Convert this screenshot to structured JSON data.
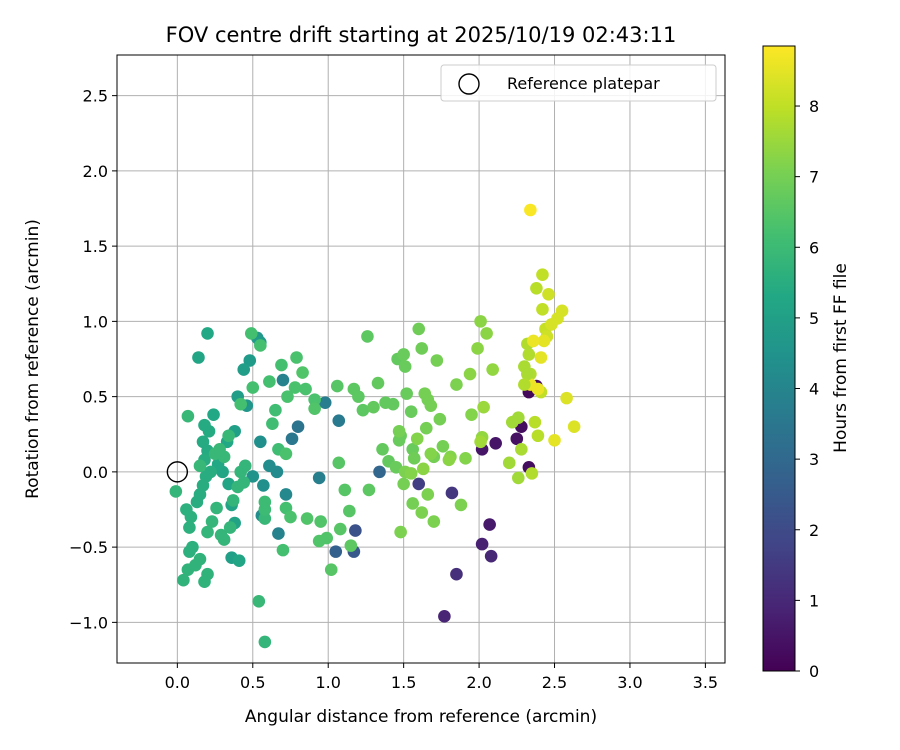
{
  "chart_data": {
    "type": "scatter",
    "title": "FOV centre drift starting at 2025/10/19 02:43:11",
    "xlabel": "Angular distance from reference (arcmin)",
    "ylabel": "Rotation from reference (arcmin)",
    "xlim": [
      -0.4,
      3.63
    ],
    "ylim": [
      -1.27,
      2.77
    ],
    "xticks": [
      0.0,
      0.5,
      1.0,
      1.5,
      2.0,
      2.5,
      3.0,
      3.5
    ],
    "xtick_labels": [
      "0.0",
      "0.5",
      "1.0",
      "1.5",
      "2.0",
      "2.5",
      "3.0",
      "3.5"
    ],
    "yticks": [
      -1.0,
      -0.5,
      0.0,
      0.5,
      1.0,
      1.5,
      2.0,
      2.5
    ],
    "ytick_labels": [
      "−1.0",
      "−0.5",
      "0.0",
      "0.5",
      "1.0",
      "1.5",
      "2.0",
      "2.5"
    ],
    "grid": true,
    "legend": {
      "placement": "top-right",
      "entries": [
        "Reference platepar"
      ]
    },
    "reference_point": {
      "x": 0.0,
      "y": 0.0
    },
    "colorbar": {
      "label": "Hours from first FF file",
      "colormap": "viridis",
      "range": [
        0,
        8.85
      ],
      "ticks": [
        0,
        1,
        2,
        3,
        4,
        5,
        6,
        7,
        8
      ],
      "tick_labels": [
        "0",
        "1",
        "2",
        "3",
        "4",
        "5",
        "6",
        "7",
        "8"
      ]
    },
    "points": [
      [
        2.33,
        0.53,
        0.2
      ],
      [
        2.38,
        0.57,
        0.3
      ],
      [
        2.25,
        0.22,
        0.4
      ],
      [
        2.28,
        0.3,
        0.3
      ],
      [
        2.33,
        0.03,
        0.3
      ],
      [
        2.11,
        0.19,
        0.5
      ],
      [
        2.02,
        0.15,
        0.5
      ],
      [
        2.07,
        -0.35,
        0.6
      ],
      [
        2.02,
        -0.48,
        0.8
      ],
      [
        2.08,
        -0.56,
        1.0
      ],
      [
        1.85,
        -0.68,
        1.2
      ],
      [
        1.77,
        -0.96,
        0.9
      ],
      [
        1.82,
        -0.14,
        1.4
      ],
      [
        1.6,
        -0.08,
        1.6
      ],
      [
        1.18,
        -0.39,
        2.2
      ],
      [
        1.17,
        -0.53,
        2.4
      ],
      [
        1.05,
        -0.53,
        2.7
      ],
      [
        1.34,
        0.0,
        2.9
      ],
      [
        1.07,
        0.34,
        3.6
      ],
      [
        0.98,
        0.46,
        3.7
      ],
      [
        0.94,
        -0.04,
        3.8
      ],
      [
        0.8,
        0.3,
        3.4
      ],
      [
        0.76,
        0.22,
        3.5
      ],
      [
        0.7,
        0.61,
        3.9
      ],
      [
        0.67,
        -0.41,
        3.9
      ],
      [
        0.72,
        -0.15,
        4.1
      ],
      [
        0.66,
        0.0,
        4.2
      ],
      [
        0.61,
        0.04,
        4.3
      ],
      [
        0.56,
        -0.29,
        4.3
      ],
      [
        0.55,
        0.2,
        4.4
      ],
      [
        0.5,
        -0.03,
        4.5
      ],
      [
        0.57,
        -0.09,
        4.4
      ],
      [
        0.46,
        0.44,
        4.6
      ],
      [
        0.53,
        0.89,
        4.7
      ],
      [
        0.48,
        0.74,
        4.8
      ],
      [
        0.55,
        0.86,
        4.8
      ],
      [
        0.44,
        0.68,
        4.9
      ],
      [
        0.4,
        0.5,
        4.9
      ],
      [
        0.38,
        0.27,
        5.0
      ],
      [
        0.36,
        -0.57,
        5.0
      ],
      [
        0.38,
        -0.34,
        5.1
      ],
      [
        0.36,
        -0.22,
        5.1
      ],
      [
        0.41,
        -0.59,
        5.2
      ],
      [
        0.34,
        -0.08,
        5.2
      ],
      [
        0.3,
        0.0,
        5.2
      ],
      [
        0.33,
        0.2,
        5.3
      ],
      [
        0.27,
        0.05,
        5.3
      ],
      [
        0.24,
        0.38,
        5.3
      ],
      [
        0.2,
        0.92,
        5.3
      ],
      [
        0.14,
        0.76,
        5.2
      ],
      [
        0.21,
        0.27,
        5.4
      ],
      [
        0.18,
        0.31,
        5.4
      ],
      [
        0.17,
        0.2,
        5.4
      ],
      [
        0.2,
        0.14,
        5.4
      ],
      [
        0.18,
        0.08,
        5.5
      ],
      [
        0.22,
        0.0,
        5.5
      ],
      [
        0.19,
        -0.03,
        5.5
      ],
      [
        0.15,
        -0.15,
        5.5
      ],
      [
        0.17,
        -0.09,
        5.5
      ],
      [
        0.13,
        -0.2,
        5.5
      ],
      [
        0.09,
        -0.3,
        5.6
      ],
      [
        0.06,
        -0.25,
        5.6
      ],
      [
        0.08,
        -0.37,
        5.6
      ],
      [
        0.1,
        -0.5,
        5.6
      ],
      [
        0.08,
        -0.53,
        5.6
      ],
      [
        0.07,
        -0.65,
        5.7
      ],
      [
        0.04,
        -0.72,
        5.7
      ],
      [
        0.12,
        -0.62,
        5.7
      ],
      [
        0.18,
        -0.73,
        5.7
      ],
      [
        0.2,
        -0.68,
        5.7
      ],
      [
        0.15,
        -0.58,
        5.7
      ],
      [
        0.2,
        -0.4,
        5.8
      ],
      [
        0.23,
        -0.33,
        5.8
      ],
      [
        0.26,
        -0.24,
        5.8
      ],
      [
        0.29,
        -0.42,
        5.8
      ],
      [
        0.31,
        -0.45,
        5.8
      ],
      [
        0.35,
        -0.37,
        5.8
      ],
      [
        0.37,
        -0.19,
        5.8
      ],
      [
        0.4,
        -0.1,
        5.8
      ],
      [
        0.42,
        0.0,
        5.8
      ],
      [
        0.45,
        0.04,
        5.8
      ],
      [
        0.44,
        -0.07,
        5.8
      ],
      [
        0.28,
        0.15,
        5.9
      ],
      [
        0.31,
        0.1,
        5.9
      ],
      [
        0.34,
        0.24,
        5.9
      ],
      [
        0.07,
        0.37,
        5.9
      ],
      [
        -0.01,
        -0.13,
        5.8
      ],
      [
        0.15,
        0.04,
        5.9
      ],
      [
        0.25,
        0.12,
        5.9
      ],
      [
        0.58,
        -0.31,
        5.9
      ],
      [
        0.54,
        -0.86,
        5.9
      ],
      [
        0.58,
        -1.13,
        5.8
      ],
      [
        0.58,
        -0.25,
        6.0
      ],
      [
        0.58,
        -0.2,
        6.0
      ],
      [
        0.63,
        0.32,
        6.1
      ],
      [
        0.65,
        0.41,
        6.1
      ],
      [
        0.67,
        0.15,
        6.1
      ],
      [
        0.61,
        0.6,
        6.2
      ],
      [
        0.5,
        0.56,
        6.2
      ],
      [
        0.42,
        0.45,
        6.2
      ],
      [
        0.49,
        0.92,
        6.2
      ],
      [
        0.55,
        0.84,
        6.2
      ],
      [
        0.69,
        0.71,
        6.2
      ],
      [
        0.72,
        -0.24,
        6.2
      ],
      [
        0.7,
        -0.52,
        6.2
      ],
      [
        0.75,
        -0.3,
        6.3
      ],
      [
        0.78,
        0.56,
        6.3
      ],
      [
        0.73,
        0.5,
        6.3
      ],
      [
        0.72,
        0.12,
        6.3
      ],
      [
        0.85,
        0.55,
        6.3
      ],
      [
        0.91,
        0.48,
        6.3
      ],
      [
        0.79,
        0.76,
        6.3
      ],
      [
        0.83,
        0.66,
        6.4
      ],
      [
        0.86,
        -0.31,
        6.4
      ],
      [
        0.95,
        -0.33,
        6.4
      ],
      [
        0.94,
        -0.46,
        6.4
      ],
      [
        0.99,
        -0.44,
        6.4
      ],
      [
        1.08,
        -0.38,
        6.5
      ],
      [
        1.02,
        -0.65,
        6.5
      ],
      [
        0.91,
        0.42,
        6.4
      ],
      [
        1.07,
        0.06,
        6.5
      ],
      [
        1.06,
        0.57,
        6.5
      ],
      [
        1.11,
        -0.12,
        6.5
      ],
      [
        1.14,
        -0.26,
        6.5
      ],
      [
        1.15,
        -0.49,
        6.6
      ],
      [
        1.17,
        0.55,
        6.6
      ],
      [
        1.2,
        0.5,
        6.6
      ],
      [
        1.23,
        0.41,
        6.6
      ],
      [
        1.26,
        0.9,
        6.6
      ],
      [
        1.27,
        -0.12,
        6.6
      ],
      [
        1.3,
        0.43,
        6.7
      ],
      [
        1.33,
        0.59,
        6.7
      ],
      [
        1.36,
        0.15,
        6.7
      ],
      [
        1.38,
        0.46,
        6.7
      ],
      [
        1.4,
        0.07,
        6.7
      ],
      [
        1.43,
        0.45,
        6.7
      ],
      [
        1.46,
        0.75,
        6.7
      ],
      [
        1.48,
        0.24,
        6.8
      ],
      [
        1.47,
        0.21,
        6.8
      ],
      [
        1.45,
        0.03,
        6.8
      ],
      [
        1.5,
        0.78,
        6.8
      ],
      [
        1.51,
        0.7,
        6.8
      ],
      [
        1.52,
        0.52,
        6.8
      ],
      [
        1.55,
        0.4,
        6.8
      ],
      [
        1.56,
        0.15,
        6.8
      ],
      [
        1.57,
        0.09,
        6.9
      ],
      [
        1.6,
        0.95,
        6.9
      ],
      [
        1.62,
        0.82,
        6.9
      ],
      [
        1.64,
        0.52,
        7.0
      ],
      [
        1.65,
        0.29,
        7.0
      ],
      [
        1.66,
        0.48,
        7.0
      ],
      [
        1.68,
        0.44,
        7.0
      ],
      [
        1.7,
        0.1,
        7.0
      ],
      [
        1.72,
        0.74,
        7.0
      ],
      [
        1.74,
        0.35,
        7.0
      ],
      [
        1.76,
        0.17,
        7.0
      ],
      [
        1.56,
        -0.21,
        7.0
      ],
      [
        1.5,
        -0.08,
        7.0
      ],
      [
        1.51,
        0.0,
        7.1
      ],
      [
        1.48,
        -0.4,
        7.1
      ],
      [
        1.62,
        -0.27,
        7.1
      ],
      [
        1.66,
        -0.15,
        7.1
      ],
      [
        1.7,
        -0.33,
        7.1
      ],
      [
        1.85,
        0.58,
        7.1
      ],
      [
        1.88,
        -0.22,
        7.1
      ],
      [
        1.81,
        0.1,
        7.2
      ],
      [
        1.91,
        0.09,
        7.2
      ],
      [
        1.95,
        0.38,
        7.2
      ],
      [
        1.94,
        0.65,
        7.3
      ],
      [
        1.99,
        0.82,
        7.3
      ],
      [
        2.01,
        1.0,
        7.3
      ],
      [
        2.05,
        0.92,
        7.3
      ],
      [
        2.02,
        0.23,
        7.4
      ],
      [
        2.09,
        0.68,
        7.4
      ],
      [
        1.59,
        0.22,
        7.2
      ],
      [
        1.63,
        0.02,
        7.3
      ],
      [
        1.47,
        0.27,
        7.0
      ],
      [
        1.55,
        -0.01,
        7.2
      ],
      [
        1.68,
        0.12,
        7.2
      ],
      [
        1.8,
        0.08,
        7.3
      ],
      [
        2.22,
        0.33,
        7.6
      ],
      [
        2.2,
        0.06,
        7.6
      ],
      [
        2.26,
        0.36,
        7.6
      ],
      [
        2.26,
        -0.04,
        7.6
      ],
      [
        2.28,
        0.15,
        7.7
      ],
      [
        2.3,
        0.7,
        7.7
      ],
      [
        2.32,
        0.85,
        7.8
      ],
      [
        2.33,
        0.78,
        7.8
      ],
      [
        2.34,
        0.65,
        7.8
      ],
      [
        2.35,
        -0.01,
        7.8
      ],
      [
        2.37,
        0.33,
        7.9
      ],
      [
        2.38,
        1.22,
        7.9
      ],
      [
        2.39,
        0.24,
        7.9
      ],
      [
        2.41,
        0.53,
        8.0
      ],
      [
        2.42,
        1.31,
        8.0
      ],
      [
        2.42,
        1.08,
        8.0
      ],
      [
        2.44,
        0.95,
        8.1
      ],
      [
        2.45,
        0.9,
        8.2
      ],
      [
        2.46,
        1.18,
        8.2
      ],
      [
        2.48,
        0.98,
        8.3
      ],
      [
        2.52,
        1.02,
        8.3
      ],
      [
        2.55,
        1.07,
        8.3
      ],
      [
        2.58,
        0.49,
        8.4
      ],
      [
        2.63,
        0.3,
        8.4
      ],
      [
        2.5,
        0.21,
        8.5
      ],
      [
        2.43,
        0.87,
        8.5
      ],
      [
        2.41,
        0.76,
        8.5
      ],
      [
        2.39,
        0.55,
        8.6
      ],
      [
        2.34,
        1.74,
        8.8
      ],
      [
        2.34,
        0.58,
        8.6
      ],
      [
        2.36,
        0.87,
        8.6
      ],
      [
        2.03,
        0.43,
        7.5
      ],
      [
        2.01,
        0.2,
        7.6
      ],
      [
        2.32,
        0.65,
        7.7
      ],
      [
        2.3,
        0.58,
        7.8
      ]
    ]
  }
}
